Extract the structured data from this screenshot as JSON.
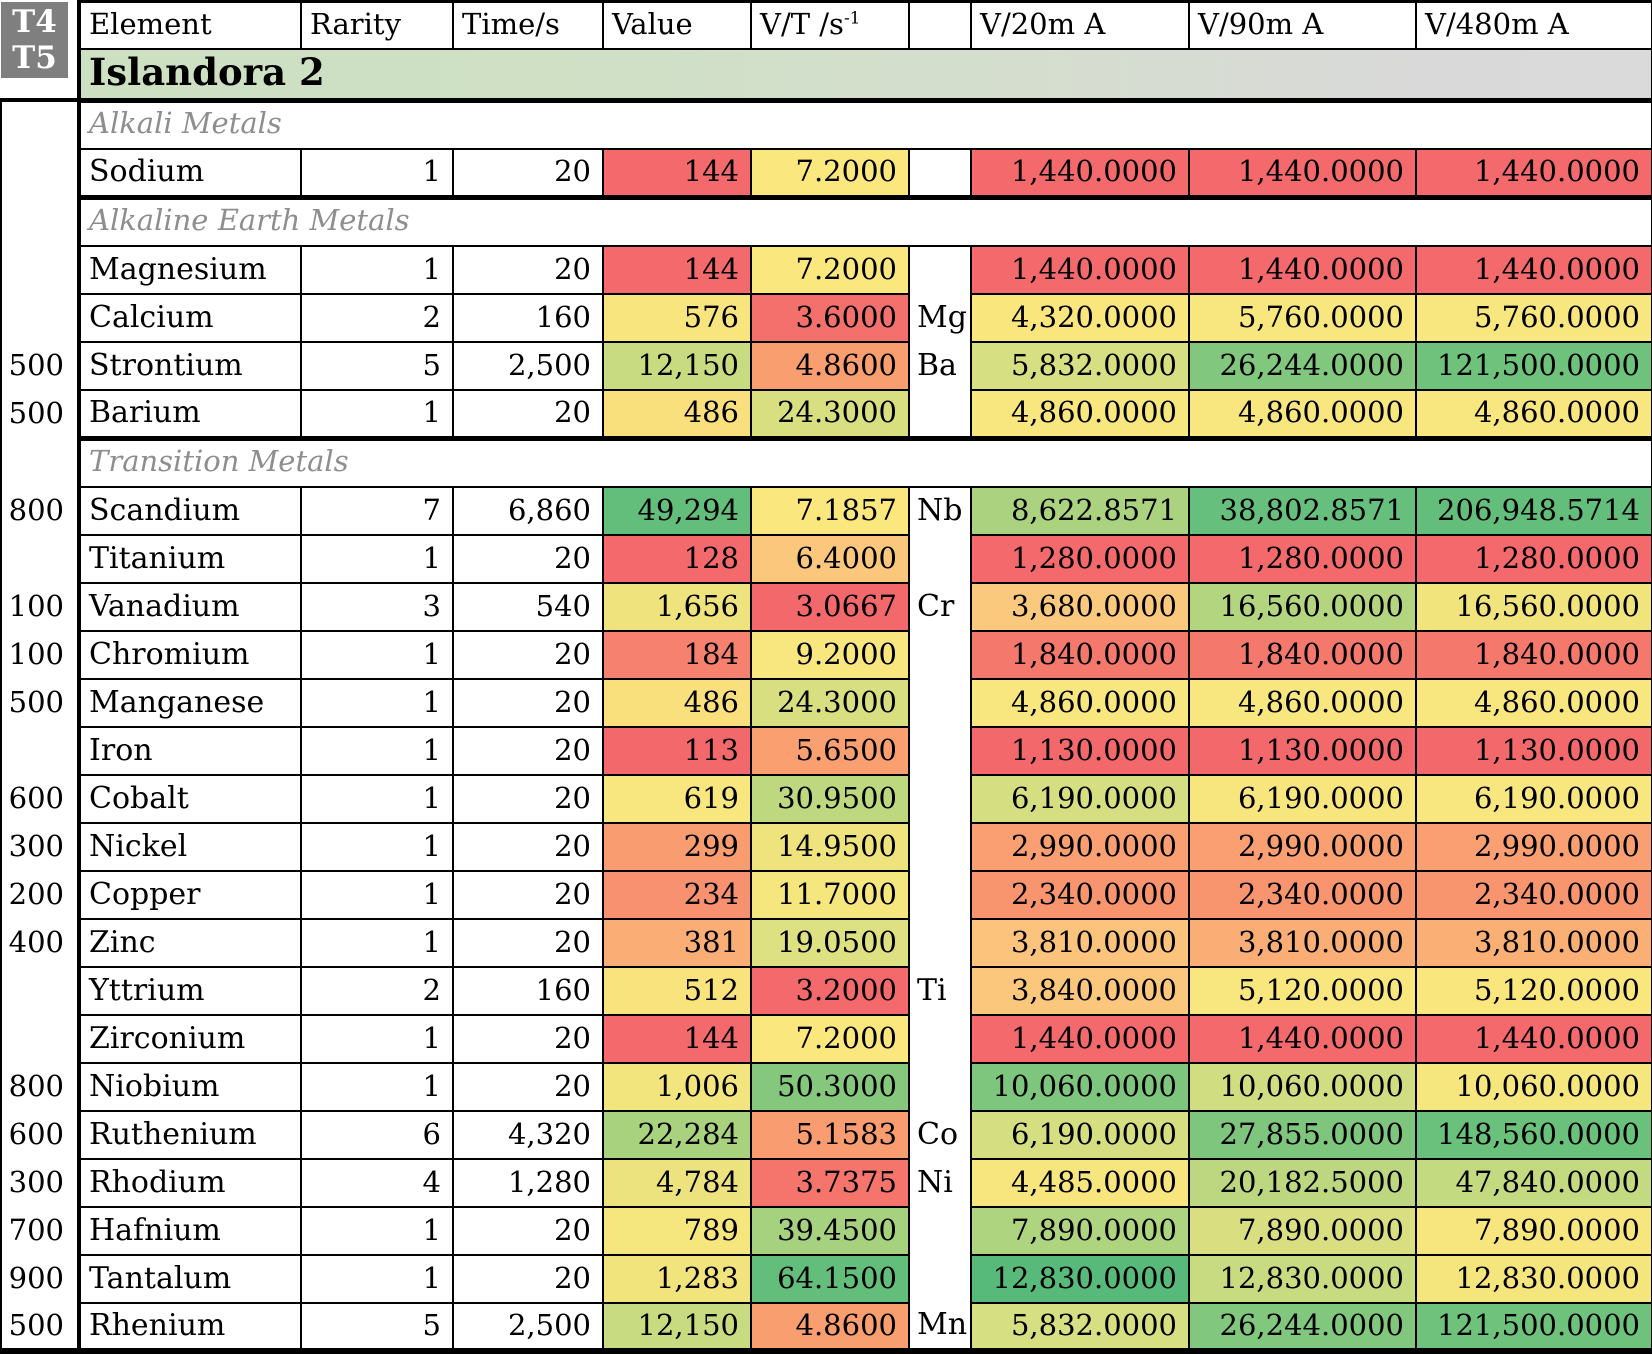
{
  "corner": {
    "t4": "T4",
    "t5": "T5"
  },
  "title": "Islandora 2",
  "header": {
    "element": "Element",
    "rarity": "Rarity",
    "time": "Time/s",
    "value": "Value",
    "vt_base": "V/T /s",
    "vt_sup": "-1",
    "symbol": "",
    "v20": "V/20m A",
    "v90": "V/90m A",
    "v480": "V/480m A"
  },
  "colors": {
    "corner_bg": "#7F7F7F",
    "title_gradient_left": "#CDE0C2",
    "title_gradient_right": "#D9D9D9",
    "section_text": "#8E8E8E",
    "scale_red": "#F4696B",
    "scale_yellow": "#F8E87E",
    "scale_green": "#63BE7B"
  },
  "rows": [
    {
      "section": "Alkali Metals"
    },
    {
      "gutter": "",
      "element": "Sodium",
      "rarity": "1",
      "time": "20",
      "value": "144",
      "vt": "7.2000",
      "sym": "",
      "v20": "1,440.0000",
      "v90": "1,440.0000",
      "v480": "1,440.0000",
      "c_value": "#F4696B",
      "c_vt": "#FAE87E",
      "c_v20": "#F4696B",
      "c_v90": "#F4696B",
      "c_v480": "#F4696B"
    },
    {
      "section": "Alkaline Earth Metals"
    },
    {
      "gutter": "",
      "element": "Magnesium",
      "rarity": "1",
      "time": "20",
      "value": "144",
      "vt": "7.2000",
      "sym": "",
      "v20": "1,440.0000",
      "v90": "1,440.0000",
      "v480": "1,440.0000",
      "c_value": "#F4696B",
      "c_vt": "#FAE87E",
      "c_v20": "#F4696B",
      "c_v90": "#F4696B",
      "c_v480": "#F4696B"
    },
    {
      "gutter": "",
      "element": "Calcium",
      "rarity": "2",
      "time": "160",
      "value": "576",
      "vt": "3.6000",
      "sym": "Mg",
      "v20": "4,320.0000",
      "v90": "5,760.0000",
      "v480": "5,760.0000",
      "c_value": "#F8E57E",
      "c_vt": "#F4706C",
      "c_v20": "#F9E77E",
      "c_v90": "#F8E67E",
      "c_v480": "#F8E67E"
    },
    {
      "gutter": "500",
      "element": "Strontium",
      "rarity": "5",
      "time": "2,500",
      "value": "12,150",
      "vt": "4.8600",
      "sym": "Ba",
      "v20": "5,832.0000",
      "v90": "26,244.0000",
      "v480": "121,500.0000",
      "c_value": "#C9DB80",
      "c_vt": "#F99E6F",
      "c_v20": "#D6DF81",
      "c_v90": "#81C77D",
      "c_v480": "#6EC27C"
    },
    {
      "gutter": "500",
      "element": "Barium",
      "rarity": "1",
      "time": "20",
      "value": "486",
      "vt": "24.3000",
      "sym": "",
      "v20": "4,860.0000",
      "v90": "4,860.0000",
      "v480": "4,860.0000",
      "c_value": "#FADF7D",
      "c_vt": "#D7DF81",
      "c_v20": "#F8E67E",
      "c_v90": "#F8E67E",
      "c_v480": "#F8E67E"
    },
    {
      "section": "Transition Metals"
    },
    {
      "gutter": "800",
      "element": "Scandium",
      "rarity": "7",
      "time": "6,860",
      "value": "49,294",
      "vt": "7.1857",
      "sym": "Nb",
      "v20": "8,622.8571",
      "v90": "38,802.8571",
      "v480": "206,948.5714",
      "c_value": "#63BE7B",
      "c_vt": "#FAE87E",
      "c_v20": "#ABD37F",
      "c_v90": "#66BF7C",
      "c_v480": "#63BE7B"
    },
    {
      "gutter": "",
      "element": "Titanium",
      "rarity": "1",
      "time": "20",
      "value": "128",
      "vt": "6.4000",
      "sym": "",
      "v20": "1,280.0000",
      "v90": "1,280.0000",
      "v480": "1,280.0000",
      "c_value": "#F4696B",
      "c_vt": "#FBC77D",
      "c_v20": "#F4696B",
      "c_v90": "#F4696B",
      "c_v480": "#F4696B"
    },
    {
      "gutter": "100",
      "element": "Vanadium",
      "rarity": "3",
      "time": "540",
      "value": "1,656",
      "vt": "3.0667",
      "sym": "Cr",
      "v20": "3,680.0000",
      "v90": "16,560.0000",
      "v480": "16,560.0000",
      "c_value": "#EFE37D",
      "c_vt": "#F3686B",
      "c_v20": "#FBC97D",
      "c_v90": "#B4D57F",
      "c_v480": "#F1E47D"
    },
    {
      "gutter": "100",
      "element": "Chromium",
      "rarity": "1",
      "time": "20",
      "value": "184",
      "vt": "9.2000",
      "sym": "",
      "v20": "1,840.0000",
      "v90": "1,840.0000",
      "v480": "1,840.0000",
      "c_value": "#F6816E",
      "c_vt": "#F8E77E",
      "c_v20": "#F5786D",
      "c_v90": "#F5786D",
      "c_v480": "#F5786D"
    },
    {
      "gutter": "500",
      "element": "Manganese",
      "rarity": "1",
      "time": "20",
      "value": "486",
      "vt": "24.3000",
      "sym": "",
      "v20": "4,860.0000",
      "v90": "4,860.0000",
      "v480": "4,860.0000",
      "c_value": "#FADF7D",
      "c_vt": "#D7DF81",
      "c_v20": "#F8E67E",
      "c_v90": "#F8E67E",
      "c_v480": "#F8E67E"
    },
    {
      "gutter": "",
      "element": "Iron",
      "rarity": "1",
      "time": "20",
      "value": "113",
      "vt": "5.6500",
      "sym": "",
      "v20": "1,130.0000",
      "v90": "1,130.0000",
      "v480": "1,130.0000",
      "c_value": "#F3686B",
      "c_vt": "#FA9F70",
      "c_v20": "#F3696B",
      "c_v90": "#F3696B",
      "c_v480": "#F3696B"
    },
    {
      "gutter": "600",
      "element": "Cobalt",
      "rarity": "1",
      "time": "20",
      "value": "619",
      "vt": "30.9500",
      "sym": "",
      "v20": "6,190.0000",
      "v90": "6,190.0000",
      "v480": "6,190.0000",
      "c_value": "#F7E77E",
      "c_vt": "#BED87F",
      "c_v20": "#D5DE81",
      "c_v90": "#F7E67E",
      "c_v480": "#F8E67E"
    },
    {
      "gutter": "300",
      "element": "Nickel",
      "rarity": "1",
      "time": "20",
      "value": "299",
      "vt": "14.9500",
      "sym": "",
      "v20": "2,990.0000",
      "v90": "2,990.0000",
      "v480": "2,990.0000",
      "c_value": "#F99C70",
      "c_vt": "#EFE37D",
      "c_v20": "#F99F71",
      "c_v90": "#F99F71",
      "c_v480": "#F99F71"
    },
    {
      "gutter": "200",
      "element": "Copper",
      "rarity": "1",
      "time": "20",
      "value": "234",
      "vt": "11.7000",
      "sym": "",
      "v20": "2,340.0000",
      "v90": "2,340.0000",
      "v480": "2,340.0000",
      "c_value": "#F8916F",
      "c_vt": "#F5E67E",
      "c_v20": "#F8956F",
      "c_v90": "#F8956F",
      "c_v480": "#F8956F"
    },
    {
      "gutter": "400",
      "element": "Zinc",
      "rarity": "1",
      "time": "20",
      "value": "381",
      "vt": "19.0500",
      "sym": "",
      "v20": "3,810.0000",
      "v90": "3,810.0000",
      "v480": "3,810.0000",
      "c_value": "#FAAD75",
      "c_vt": "#DEE182",
      "c_v20": "#FBC37B",
      "c_v90": "#FAAE75",
      "c_v480": "#FAB075"
    },
    {
      "gutter": "",
      "element": "Yttrium",
      "rarity": "2",
      "time": "160",
      "value": "512",
      "vt": "3.2000",
      "sym": "Ti",
      "v20": "3,840.0000",
      "v90": "5,120.0000",
      "v480": "5,120.0000",
      "c_value": "#F9E37D",
      "c_vt": "#F4696B",
      "c_v20": "#FBC77C",
      "c_v90": "#F8E67E",
      "c_v480": "#F9E77E"
    },
    {
      "gutter": "",
      "element": "Zirconium",
      "rarity": "1",
      "time": "20",
      "value": "144",
      "vt": "7.2000",
      "sym": "",
      "v20": "1,440.0000",
      "v90": "1,440.0000",
      "v480": "1,440.0000",
      "c_value": "#F4696B",
      "c_vt": "#FAE87E",
      "c_v20": "#F4696B",
      "c_v90": "#F4696B",
      "c_v480": "#F4696B"
    },
    {
      "gutter": "800",
      "element": "Niobium",
      "rarity": "1",
      "time": "20",
      "value": "1,006",
      "vt": "50.3000",
      "sym": "",
      "v20": "10,060.0000",
      "v90": "10,060.0000",
      "v480": "10,060.0000",
      "c_value": "#F3E57D",
      "c_vt": "#84C77D",
      "c_v20": "#7EC57D",
      "c_v90": "#D0DD80",
      "c_v480": "#F6E67E"
    },
    {
      "gutter": "600",
      "element": "Ruthenium",
      "rarity": "6",
      "time": "4,320",
      "value": "22,284",
      "vt": "5.1583",
      "sym": "Co",
      "v20": "6,190.0000",
      "v90": "27,855.0000",
      "v480": "148,560.0000",
      "c_value": "#A9D27F",
      "c_vt": "#F99C6F",
      "c_v20": "#D5DE81",
      "c_v90": "#7EC67D",
      "c_v480": "#6AC17C"
    },
    {
      "gutter": "300",
      "element": "Rhodium",
      "rarity": "4",
      "time": "1,280",
      "value": "4,784",
      "vt": "3.7375",
      "sym": "Ni",
      "v20": "4,485.0000",
      "v90": "20,182.5000",
      "v480": "47,840.0000",
      "c_value": "#ECE37E",
      "c_vt": "#F5746C",
      "c_v20": "#F7E67E",
      "c_v90": "#BCD780",
      "c_v480": "#C3DA80"
    },
    {
      "gutter": "700",
      "element": "Hafnium",
      "rarity": "1",
      "time": "20",
      "value": "789",
      "vt": "39.4500",
      "sym": "",
      "v20": "7,890.0000",
      "v90": "7,890.0000",
      "v480": "7,890.0000",
      "c_value": "#F6E67E",
      "c_vt": "#A6D17E",
      "c_v20": "#AFD47F",
      "c_v90": "#D9DF81",
      "c_v480": "#F7E67E"
    },
    {
      "gutter": "900",
      "element": "Tantalum",
      "rarity": "1",
      "time": "20",
      "value": "1,283",
      "vt": "64.1500",
      "sym": "",
      "v20": "12,830.0000",
      "v90": "12,830.0000",
      "v480": "12,830.0000",
      "c_value": "#F2E47D",
      "c_vt": "#63BE7B",
      "c_v20": "#58BA7A",
      "c_v90": "#C9DB80",
      "c_v480": "#F4E57D"
    },
    {
      "gutter": "500",
      "element": "Rhenium",
      "rarity": "5",
      "time": "2,500",
      "value": "12,150",
      "vt": "4.8600",
      "sym": "Mn",
      "v20": "5,832.0000",
      "v90": "26,244.0000",
      "v480": "121,500.0000",
      "c_value": "#C9DB80",
      "c_vt": "#F99E6F",
      "c_v20": "#D6DF81",
      "c_v90": "#81C77D",
      "c_v480": "#6EC27C"
    }
  ]
}
